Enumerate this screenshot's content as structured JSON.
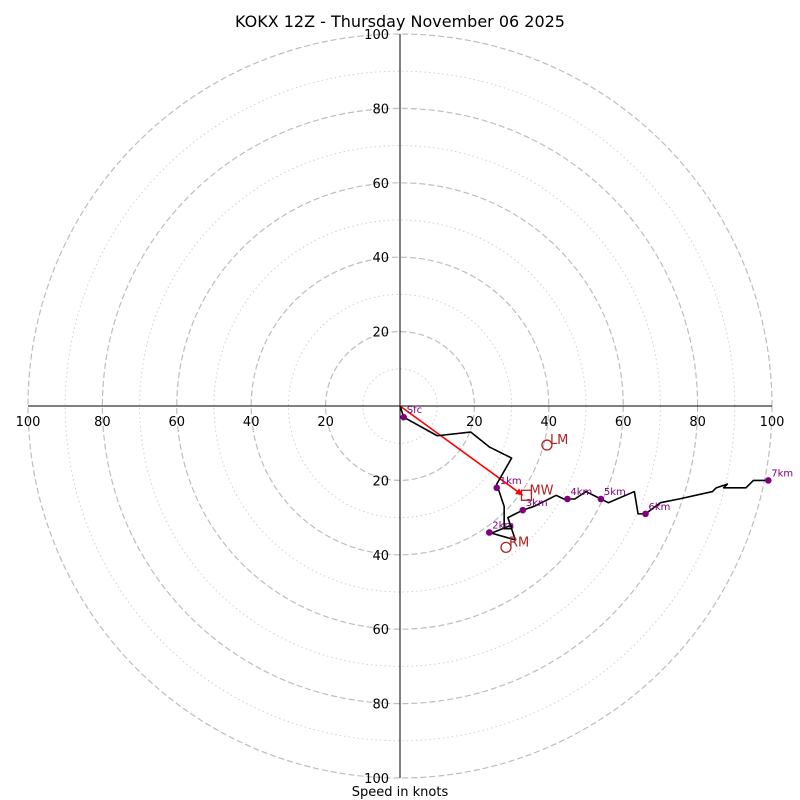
{
  "chart_data": {
    "type": "hodograph",
    "title": "KOKX 12Z - Thursday November 06 2025",
    "xlabel": "Speed in knots",
    "ring_max": 100,
    "ring_labels": [
      "20",
      "40",
      "60",
      "80",
      "100"
    ],
    "ring_values": [
      20,
      40,
      60,
      80,
      100
    ],
    "minor_ring_values": [
      10,
      30,
      50,
      70,
      90
    ],
    "colors": {
      "trace": "#000000",
      "levels": "#800080",
      "motion": "#b22222",
      "shear_vector": "#ff0000"
    },
    "wind_trace": [
      [
        0,
        0
      ],
      [
        1,
        -3
      ],
      [
        10,
        -8
      ],
      [
        19,
        -7
      ],
      [
        24,
        -11
      ],
      [
        30,
        -14
      ],
      [
        26,
        -21
      ],
      [
        28,
        -27
      ],
      [
        28,
        -33
      ],
      [
        30,
        -33
      ],
      [
        30,
        -32
      ],
      [
        25,
        -34
      ],
      [
        24,
        -34
      ],
      [
        31,
        -36
      ],
      [
        29,
        -30
      ],
      [
        33,
        -28
      ],
      [
        36,
        -27
      ],
      [
        42,
        -24
      ],
      [
        44,
        -25
      ],
      [
        47,
        -25
      ],
      [
        50,
        -23
      ],
      [
        54,
        -25
      ],
      [
        56,
        -26
      ],
      [
        63,
        -23
      ],
      [
        64,
        -29
      ],
      [
        66,
        -29
      ],
      [
        70,
        -26
      ],
      [
        75,
        -25
      ],
      [
        84,
        -23
      ],
      [
        85,
        -22
      ],
      [
        88,
        -21
      ],
      [
        87,
        -22
      ],
      [
        93,
        -22
      ],
      [
        95,
        -20
      ],
      [
        97,
        -20
      ],
      [
        99,
        -20
      ]
    ],
    "level_points": [
      {
        "label": "Sfc",
        "u": 1,
        "v": -3
      },
      {
        "label": "1km",
        "u": 26,
        "v": -22
      },
      {
        "label": "2km",
        "u": 24,
        "v": -34
      },
      {
        "label": "3km",
        "u": 33,
        "v": -28
      },
      {
        "label": "4km",
        "u": 45,
        "v": -25
      },
      {
        "label": "5km",
        "u": 54,
        "v": -25
      },
      {
        "label": "6km",
        "u": 66,
        "v": -29
      },
      {
        "label": "7km",
        "u": 99,
        "v": -20
      }
    ],
    "storm_motion": [
      {
        "label": "LM",
        "u": 39.5,
        "v": -10.5,
        "marker": "circle"
      },
      {
        "label": "MW",
        "u": 34,
        "v": -24,
        "marker": "square"
      },
      {
        "label": "RM",
        "u": 28.5,
        "v": -38,
        "marker": "circle"
      }
    ],
    "shear_vector": {
      "from": [
        0,
        0
      ],
      "to": [
        33,
        -24
      ]
    }
  }
}
